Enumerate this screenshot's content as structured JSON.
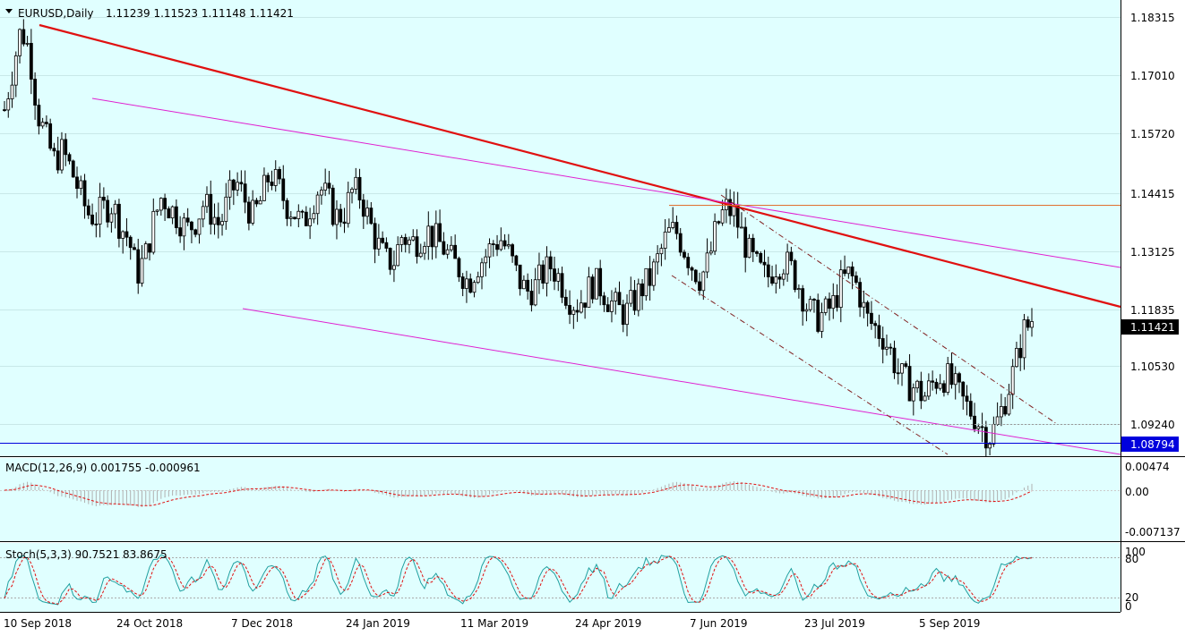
{
  "header": {
    "symbol": "EURUSD,Daily",
    "ohlc": "1.11239 1.11523 1.11148 1.11421"
  },
  "price_axis": {
    "ticks": [
      "1.18315",
      "1.17010",
      "1.15720",
      "1.14415",
      "1.13125",
      "1.11835",
      "1.10530",
      "1.09240"
    ],
    "current_price": "1.11421",
    "blue_line_price": "1.08794"
  },
  "macd": {
    "label": "MACD(12,26,9) 0.001755 -0.000961",
    "ticks": [
      "0.00474",
      "0.00",
      "-0.007137"
    ]
  },
  "stoch": {
    "label": "Stoch(5,3,3) 90.7521 83.8675",
    "ticks": [
      "100",
      "80",
      "20",
      "0"
    ]
  },
  "time_axis": {
    "labels": [
      "10 Sep 2018",
      "24 Oct 2018",
      "7 Dec 2018",
      "24 Jan 2019",
      "11 Mar 2019",
      "24 Apr 2019",
      "7 Jun 2019",
      "23 Jul 2019",
      "5 Sep 2019"
    ]
  },
  "colors": {
    "background": "#E0FFFF",
    "main_trend": "#E01010",
    "channel": "#E020D0",
    "horizontal": "#E07030",
    "blue_line": "#0000DD",
    "macd_signal": "#E01010",
    "stoch_main": "#20A0A0",
    "stoch_signal": "#E01010"
  },
  "chart_data": {
    "type": "candlestick",
    "title": "EURUSD,Daily",
    "ylim": [
      1.0835,
      1.1875
    ],
    "close_series": [
      1.1625,
      1.172,
      1.181,
      1.176,
      1.162,
      1.156,
      1.151,
      1.153,
      1.149,
      1.144,
      1.139,
      1.138,
      1.14,
      1.141,
      1.136,
      1.133,
      1.125,
      1.129,
      1.137,
      1.143,
      1.14,
      1.138,
      1.135,
      1.137,
      1.141,
      1.139,
      1.136,
      1.142,
      1.146,
      1.142,
      1.138,
      1.142,
      1.148,
      1.145,
      1.141,
      1.139,
      1.136,
      1.141,
      1.145,
      1.142,
      1.138,
      1.139,
      1.144,
      1.143,
      1.137,
      1.132,
      1.128,
      1.128,
      1.134,
      1.132,
      1.133,
      1.135,
      1.133,
      1.131,
      1.128,
      1.126,
      1.123,
      1.127,
      1.129,
      1.132,
      1.133,
      1.129,
      1.124,
      1.121,
      1.122,
      1.125,
      1.127,
      1.124,
      1.12,
      1.118,
      1.12,
      1.123,
      1.122,
      1.119,
      1.117,
      1.116,
      1.119,
      1.122,
      1.124,
      1.129,
      1.134,
      1.135,
      1.131,
      1.127,
      1.124,
      1.128,
      1.136,
      1.14,
      1.139,
      1.134,
      1.129,
      1.126,
      1.124,
      1.127,
      1.128,
      1.126,
      1.122,
      1.117,
      1.115,
      1.116,
      1.118,
      1.123,
      1.125,
      1.122,
      1.115,
      1.113,
      1.111,
      1.107,
      1.102,
      1.1,
      1.099,
      1.097,
      1.1,
      1.102,
      1.101,
      1.098,
      1.095,
      1.093,
      1.09,
      1.088,
      1.092,
      1.098,
      1.104,
      1.112,
      1.1142
    ]
  }
}
